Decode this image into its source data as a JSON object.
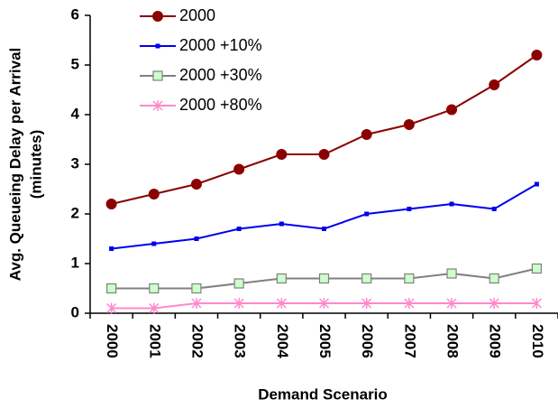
{
  "chart_data": {
    "type": "line",
    "y_label": [
      "Avg. Queueing Delay per Arrival",
      "(minutes)"
    ],
    "x_label": "Demand Scenario",
    "categories": [
      "2000",
      "2001",
      "2002",
      "2003",
      "2004",
      "2005",
      "2006",
      "2007",
      "2008",
      "2009",
      "2010"
    ],
    "series": [
      {
        "name": "2000",
        "color": "#8b0000",
        "marker": "circle",
        "marker_fill": "#8b0000",
        "values": [
          2.2,
          2.4,
          2.6,
          2.9,
          3.2,
          3.2,
          3.6,
          3.8,
          4.1,
          4.6,
          5.2
        ]
      },
      {
        "name": "2000 +10%",
        "color": "#0000ee",
        "marker": "square-small",
        "marker_fill": "#0000ee",
        "values": [
          1.3,
          1.4,
          1.5,
          1.7,
          1.8,
          1.7,
          2.0,
          2.1,
          2.2,
          2.1,
          2.6
        ]
      },
      {
        "name": "2000 +30%",
        "color": "#808080",
        "marker": "square",
        "marker_fill": "#ccffcc",
        "values": [
          0.5,
          0.5,
          0.5,
          0.6,
          0.7,
          0.7,
          0.7,
          0.7,
          0.8,
          0.7,
          0.9
        ]
      },
      {
        "name": "2000 +80%",
        "color": "#ff88cc",
        "marker": "asterisk",
        "marker_fill": "#ff88cc",
        "values": [
          0.1,
          0.1,
          0.2,
          0.2,
          0.2,
          0.2,
          0.2,
          0.2,
          0.2,
          0.2,
          0.2
        ]
      }
    ],
    "ylim": [
      0,
      6
    ],
    "yticks": [
      0,
      1,
      2,
      3,
      4,
      5,
      6
    ],
    "grid": false,
    "legend": "top-left"
  }
}
